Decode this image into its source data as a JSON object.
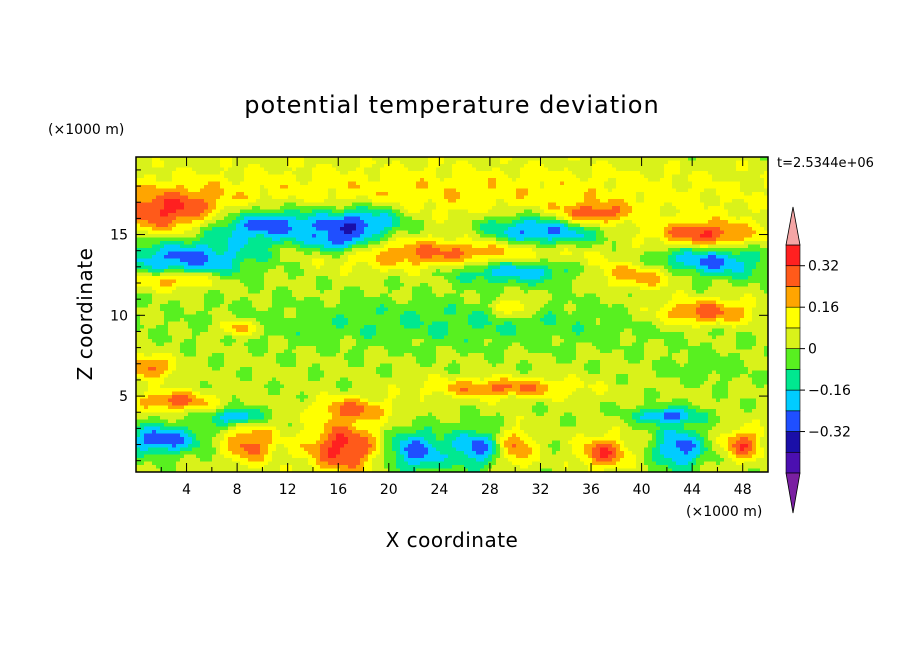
{
  "chart_data": {
    "type": "heatmap",
    "subtype": "filled-contour",
    "title": "potential temperature deviation",
    "xlabel": "X coordinate",
    "ylabel": "Z coordinate",
    "x_unit": "(×1000 m)",
    "y_unit": "(×1000 m)",
    "time_label": "t=2.5344e+06",
    "xlim": [
      0,
      50
    ],
    "ylim": [
      0.3,
      19.8
    ],
    "xticks": [
      4,
      8,
      12,
      16,
      20,
      24,
      28,
      32,
      36,
      40,
      44,
      48
    ],
    "yticks": [
      5,
      10,
      15
    ],
    "colorbar": {
      "levels": [
        -0.48,
        -0.4,
        -0.32,
        -0.24,
        -0.16,
        -0.08,
        0,
        0.08,
        0.16,
        0.24,
        0.32,
        0.4
      ],
      "tick_values": [
        -0.32,
        -0.16,
        0,
        0.16,
        0.32
      ],
      "tick_labels": [
        "−0.32",
        "−0.16",
        "0",
        "0.16",
        "0.32"
      ],
      "colors": [
        "#7a1fa2",
        "#4b0fb0",
        "#1a0fa8",
        "#1f4fff",
        "#00ccff",
        "#00e890",
        "#58f020",
        "#d9f21a",
        "#ffff00",
        "#ffa500",
        "#ff5a1a",
        "#ff2020",
        "#f5a5a5"
      ],
      "extend": "both"
    },
    "base_value": 0.02,
    "features": [
      {
        "x": 24,
        "z": 17.5,
        "sx": 30,
        "sz": 2.0,
        "value": 0.12
      },
      {
        "x": 3,
        "z": 16.3,
        "sx": 4.5,
        "sz": 1.4,
        "value": 0.3
      },
      {
        "x": 10,
        "z": 15.6,
        "sx": 5.5,
        "sz": 1.1,
        "value": -0.34
      },
      {
        "x": 18,
        "z": 15.8,
        "sx": 3.5,
        "sz": 1.0,
        "value": -0.32
      },
      {
        "x": 32,
        "z": 15.2,
        "sx": 5,
        "sz": 1.1,
        "value": -0.34
      },
      {
        "x": 36,
        "z": 16.2,
        "sx": 3,
        "sz": 0.7,
        "value": 0.28
      },
      {
        "x": 16,
        "z": 14.5,
        "sx": 2.5,
        "sz": 0.7,
        "value": -0.28
      },
      {
        "x": 45,
        "z": 15,
        "sx": 4,
        "sz": 0.8,
        "value": 0.3
      },
      {
        "x": 45,
        "z": 13.3,
        "sx": 4.5,
        "sz": 1.0,
        "value": -0.3
      },
      {
        "x": 4,
        "z": 13.5,
        "sx": 5.5,
        "sz": 1.2,
        "value": -0.3
      },
      {
        "x": 26,
        "z": 13.8,
        "sx": 10,
        "sz": 1.0,
        "value": 0.26
      },
      {
        "x": 30,
        "z": 12.8,
        "sx": 5,
        "sz": 0.8,
        "value": -0.3
      },
      {
        "x": 3,
        "z": 12.2,
        "sx": 3.5,
        "sz": 0.6,
        "value": 0.24
      },
      {
        "x": 40,
        "z": 12.5,
        "sx": 4,
        "sz": 0.8,
        "value": 0.22
      },
      {
        "x": 45,
        "z": 10.2,
        "sx": 4,
        "sz": 0.8,
        "value": 0.28
      },
      {
        "x": 25,
        "z": 9.5,
        "sx": 18,
        "sz": 1.5,
        "value": -0.1
      },
      {
        "x": 30,
        "z": 10.5,
        "sx": 1.5,
        "sz": 0.6,
        "value": 0.2
      },
      {
        "x": 8,
        "z": 9.2,
        "sx": 1.5,
        "sz": 0.5,
        "value": 0.22
      },
      {
        "x": 1,
        "z": 6.8,
        "sx": 2,
        "sz": 0.7,
        "value": 0.26
      },
      {
        "x": 45,
        "z": 6.8,
        "sx": 3,
        "sz": 0.9,
        "value": -0.08
      },
      {
        "x": 29,
        "z": 5.5,
        "sx": 6,
        "sz": 0.6,
        "value": 0.24
      },
      {
        "x": 3,
        "z": 4.7,
        "sx": 3,
        "sz": 0.6,
        "value": 0.26
      },
      {
        "x": 17,
        "z": 4.2,
        "sx": 3,
        "sz": 0.7,
        "value": 0.22
      },
      {
        "x": 8,
        "z": 3.7,
        "sx": 2,
        "sz": 0.5,
        "value": -0.3
      },
      {
        "x": 42,
        "z": 3.8,
        "sx": 2.5,
        "sz": 0.5,
        "value": -0.28
      },
      {
        "x": 2,
        "z": 2.3,
        "sx": 3,
        "sz": 0.9,
        "value": -0.32
      },
      {
        "x": 9,
        "z": 2.0,
        "sx": 2,
        "sz": 1.2,
        "value": 0.26
      },
      {
        "x": 16.5,
        "z": 1.8,
        "sx": 3,
        "sz": 1.6,
        "value": 0.34
      },
      {
        "x": 22,
        "z": 1.6,
        "sx": 2.5,
        "sz": 1.3,
        "value": -0.3
      },
      {
        "x": 27,
        "z": 1.8,
        "sx": 2,
        "sz": 1.2,
        "value": -0.28
      },
      {
        "x": 30,
        "z": 1.8,
        "sx": 1.5,
        "sz": 1.2,
        "value": 0.24
      },
      {
        "x": 37,
        "z": 1.5,
        "sx": 2,
        "sz": 1.0,
        "value": 0.28
      },
      {
        "x": 43,
        "z": 1.8,
        "sx": 2,
        "sz": 1.3,
        "value": -0.3
      },
      {
        "x": 48,
        "z": 2.0,
        "sx": 1.5,
        "sz": 1.0,
        "value": 0.28
      }
    ]
  }
}
